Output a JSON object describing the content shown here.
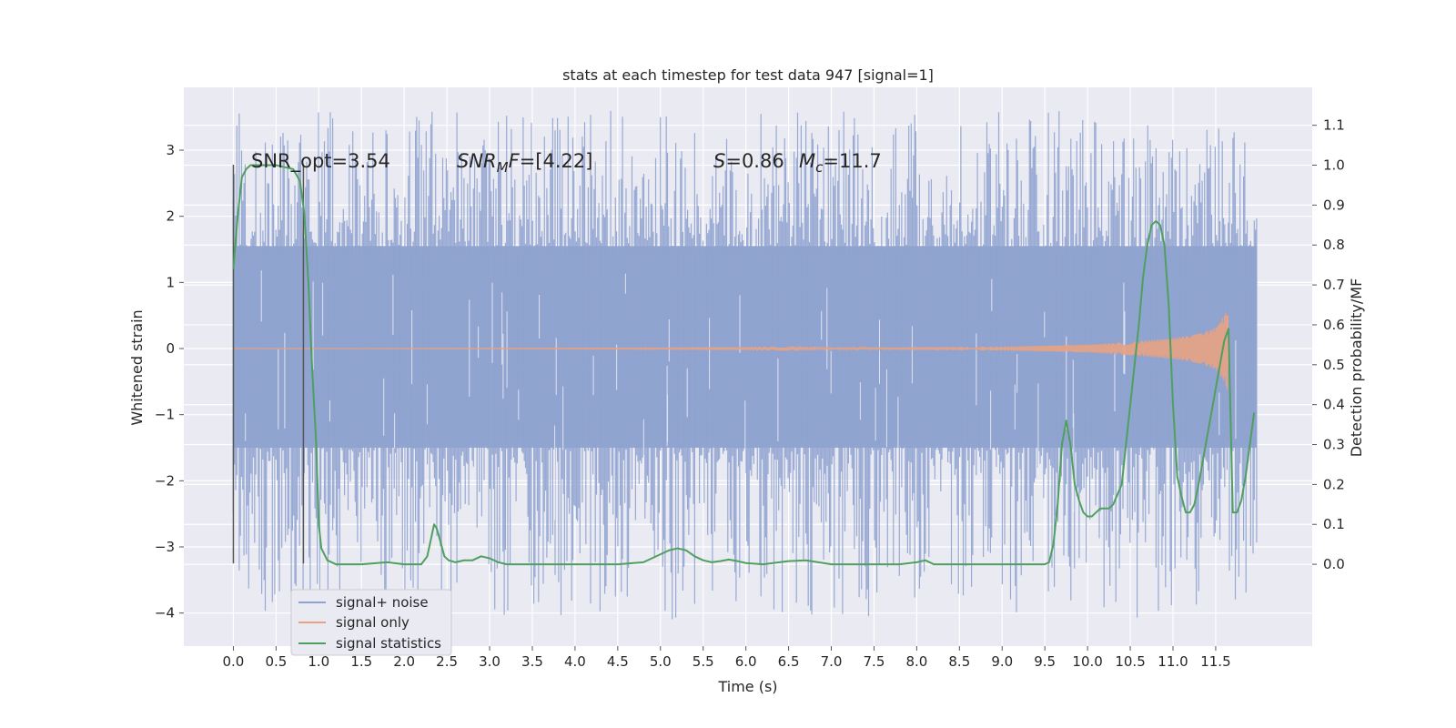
{
  "chart_data": {
    "type": "line",
    "title": "stats at each timestep for test data 947 [signal=1]",
    "xlabel": "Time (s)",
    "ylabel": "Whitened strain",
    "y2label": "Detection probability/MF",
    "xlim": [
      -0.58,
      12.63
    ],
    "ylim": [
      -4.5,
      3.95
    ],
    "y2lim": [
      -0.205,
      1.195
    ],
    "x_ticks": [
      "0.0",
      "0.5",
      "1.0",
      "1.5",
      "2.0",
      "2.5",
      "3.0",
      "3.5",
      "4.0",
      "4.5",
      "5.0",
      "5.5",
      "6.0",
      "6.5",
      "7.0",
      "7.5",
      "8.0",
      "8.5",
      "9.0",
      "9.5",
      "10.0",
      "10.5",
      "11.0",
      "11.5"
    ],
    "y_ticks": [
      3,
      2,
      1,
      0,
      -1,
      -2,
      -3,
      -4
    ],
    "y_tick_labels": [
      "3",
      "2",
      "1",
      "0",
      "−1",
      "−2",
      "−3",
      "−4"
    ],
    "y2_ticks": [
      "0.0",
      "0.1",
      "0.2",
      "0.3",
      "0.4",
      "0.5",
      "0.6",
      "0.7",
      "0.8",
      "0.9",
      "1.0",
      "1.1"
    ],
    "grid": true,
    "legend_position": "lower-left",
    "annotations": {
      "snr_opt": "SNR_opt=3.54",
      "snr_mf_prefix": "SNR",
      "snr_mf_sub": "M",
      "snr_mf_suffix_it": "F",
      "snr_mf_value": "=[4.22]",
      "s_symbol": "S",
      "s_value": "=0.86",
      "mc_symbol": "M",
      "mc_sub": "c",
      "mc_value": "=11.7"
    },
    "vertical_markers": [
      {
        "x": 0.0,
        "y_range": [
          -3.25,
          2.78
        ]
      },
      {
        "x": 0.82,
        "y_range": [
          -3.25,
          2.78
        ]
      }
    ],
    "series": [
      {
        "name": "signal+ noise",
        "color": "#8fa3cf",
        "kind": "noise_band",
        "x_range": [
          0.0,
          11.98
        ],
        "core_range": [
          -1.5,
          1.55
        ],
        "peak_range": [
          -4.1,
          3.6
        ]
      },
      {
        "name": "signal only",
        "color": "#e8a283",
        "kind": "chirp",
        "x_range": [
          0.0,
          11.65
        ],
        "envelope_points": [
          [
            0.0,
            0.0
          ],
          [
            7.5,
            0.01
          ],
          [
            8.0,
            0.02
          ],
          [
            9.0,
            0.03
          ],
          [
            10.0,
            0.06
          ],
          [
            10.5,
            0.1
          ],
          [
            11.0,
            0.16
          ],
          [
            11.3,
            0.22
          ],
          [
            11.5,
            0.32
          ],
          [
            11.6,
            0.5
          ],
          [
            11.64,
            0.65
          ],
          [
            11.65,
            0.0
          ]
        ]
      },
      {
        "name": "signal statistics",
        "color": "#4f9f5f",
        "axis": "right",
        "x": [
          0.0,
          0.05,
          0.1,
          0.15,
          0.2,
          0.25,
          0.3,
          0.4,
          0.5,
          0.6,
          0.7,
          0.78,
          0.83,
          0.88,
          0.92,
          0.97,
          1.0,
          1.03,
          1.1,
          1.2,
          1.3,
          1.5,
          1.8,
          2.0,
          2.2,
          2.27,
          2.31,
          2.35,
          2.38,
          2.42,
          2.47,
          2.52,
          2.6,
          2.7,
          2.8,
          2.9,
          3.0,
          3.1,
          3.2,
          3.3,
          3.5,
          3.8,
          4.0,
          4.5,
          4.8,
          5.0,
          5.1,
          5.2,
          5.3,
          5.4,
          5.5,
          5.6,
          5.7,
          5.8,
          5.9,
          6.0,
          6.2,
          6.5,
          6.7,
          7.0,
          7.5,
          7.8,
          8.0,
          8.1,
          8.2,
          8.5,
          9.0,
          9.3,
          9.5,
          9.55,
          9.6,
          9.65,
          9.7,
          9.75,
          9.8,
          9.85,
          9.9,
          9.95,
          10.0,
          10.05,
          10.1,
          10.15,
          10.2,
          10.25,
          10.3,
          10.4,
          10.5,
          10.6,
          10.65,
          10.7,
          10.75,
          10.8,
          10.85,
          10.9,
          10.95,
          11.0,
          11.05,
          11.1,
          11.15,
          11.2,
          11.25,
          11.3,
          11.35,
          11.4,
          11.45,
          11.5,
          11.55,
          11.6,
          11.65,
          11.7,
          11.75,
          11.8,
          11.85,
          11.9,
          11.95
        ],
        "y": [
          0.74,
          0.87,
          0.97,
          0.99,
          1.0,
          1.0,
          1.0,
          1.0,
          1.0,
          0.995,
          0.99,
          0.96,
          0.88,
          0.7,
          0.5,
          0.3,
          0.1,
          0.04,
          0.01,
          0.0,
          0.0,
          0.0,
          0.005,
          0.0,
          0.0,
          0.02,
          0.06,
          0.1,
          0.09,
          0.06,
          0.02,
          0.01,
          0.005,
          0.01,
          0.01,
          0.02,
          0.015,
          0.005,
          0.0,
          0.0,
          0.0,
          0.0,
          0.0,
          0.0,
          0.005,
          0.025,
          0.035,
          0.04,
          0.035,
          0.02,
          0.01,
          0.005,
          0.008,
          0.012,
          0.008,
          0.003,
          0.0,
          0.008,
          0.01,
          0.0,
          0.0,
          0.0,
          0.005,
          0.01,
          0.0,
          0.0,
          0.0,
          0.0,
          0.0,
          0.005,
          0.05,
          0.15,
          0.3,
          0.36,
          0.3,
          0.2,
          0.16,
          0.13,
          0.12,
          0.12,
          0.13,
          0.14,
          0.14,
          0.14,
          0.15,
          0.2,
          0.4,
          0.6,
          0.72,
          0.8,
          0.85,
          0.86,
          0.85,
          0.8,
          0.65,
          0.4,
          0.22,
          0.17,
          0.13,
          0.13,
          0.15,
          0.2,
          0.26,
          0.32,
          0.38,
          0.44,
          0.5,
          0.56,
          0.59,
          0.13,
          0.13,
          0.16,
          0.22,
          0.3,
          0.38
        ]
      }
    ]
  },
  "legend": {
    "items": [
      {
        "label": "signal+ noise",
        "color": "#8fa3cf"
      },
      {
        "label": "signal only",
        "color": "#e8a283"
      },
      {
        "label": "signal statistics",
        "color": "#4f9f5f"
      }
    ]
  }
}
